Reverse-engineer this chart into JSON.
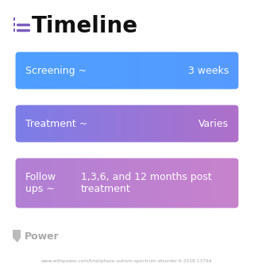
{
  "title": "Timeline",
  "title_fontsize": 20,
  "title_color": "#111111",
  "title_icon_color": "#7c5cbf",
  "background_color": "#ffffff",
  "cards": [
    {
      "label": "Screening ~",
      "value": "3 weeks",
      "color_left": "#4d9eff",
      "color_right": "#5599ff",
      "text_color": "#ffffff",
      "multiline": false,
      "label2": null,
      "value2": null
    },
    {
      "label": "Treatment ~",
      "value": "Varies",
      "color_left": "#7b7de8",
      "color_right": "#b06fc8",
      "text_color": "#ffffff",
      "multiline": false,
      "label2": null,
      "value2": null
    },
    {
      "label": "Follow\nups ~",
      "value": "1,3,6, and 12 months post\ntreatment",
      "color_left": "#b07fd4",
      "color_right": "#c882cc",
      "text_color": "#ffffff",
      "multiline": true,
      "label2": null,
      "value2": null
    }
  ],
  "footer_text": "Power",
  "footer_url": "www.withpower.com/trial/phase-autism-spectrum-disorder-9-2018-1379d"
}
